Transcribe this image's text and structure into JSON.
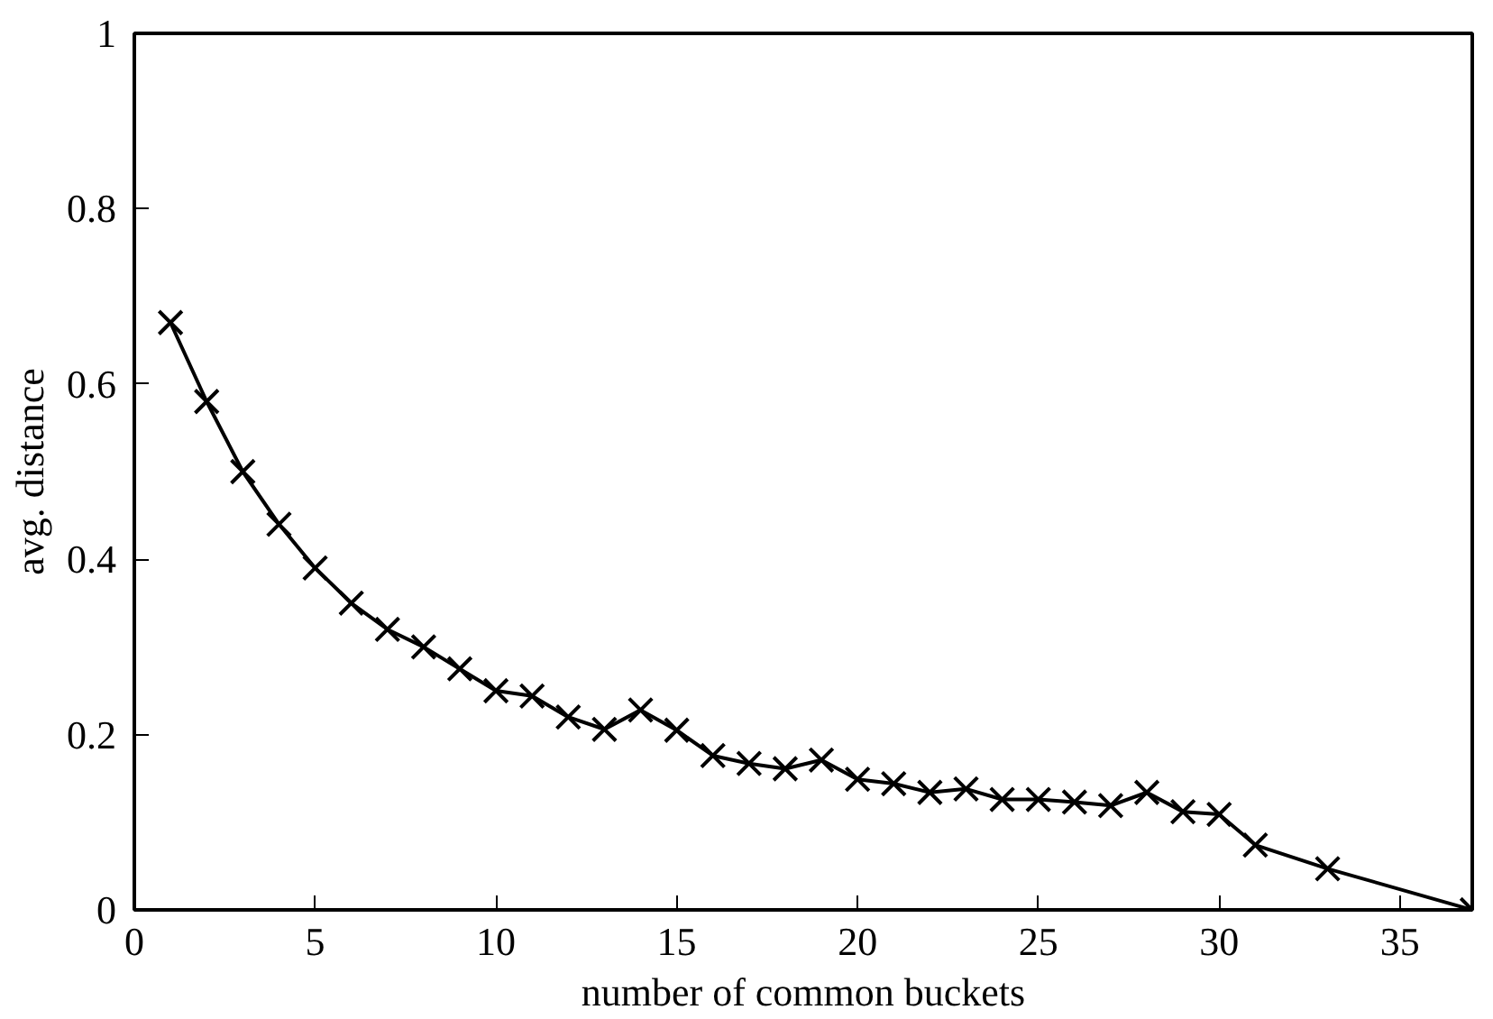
{
  "chart_data": {
    "type": "line",
    "xlabel": "number of common buckets",
    "ylabel": "avg. distance",
    "x": [
      1,
      2,
      3,
      4,
      5,
      6,
      7,
      8,
      9,
      10,
      11,
      12,
      13,
      14,
      15,
      16,
      17,
      18,
      19,
      20,
      21,
      22,
      23,
      24,
      25,
      26,
      27,
      28,
      29,
      30,
      31,
      33,
      37
    ],
    "series": [
      {
        "color": "#000000",
        "values": [
          0.67,
          0.58,
          0.5,
          0.44,
          0.39,
          0.35,
          0.32,
          0.3,
          0.275,
          0.25,
          0.244,
          0.22,
          0.206,
          0.228,
          0.205,
          0.176,
          0.167,
          0.161,
          0.171,
          0.149,
          0.144,
          0.134,
          0.138,
          0.126,
          0.126,
          0.123,
          0.119,
          0.134,
          0.112,
          0.109,
          0.074,
          0.047,
          0.0
        ]
      }
    ],
    "xlim": [
      0,
      37
    ],
    "ylim": [
      0,
      1
    ],
    "xticks": [
      0,
      5,
      10,
      15,
      20,
      25,
      30,
      35
    ],
    "yticks": [
      0,
      0.2,
      0.4,
      0.6,
      0.8,
      1
    ],
    "grid": false,
    "marker": "cross",
    "line_style": "solid"
  }
}
